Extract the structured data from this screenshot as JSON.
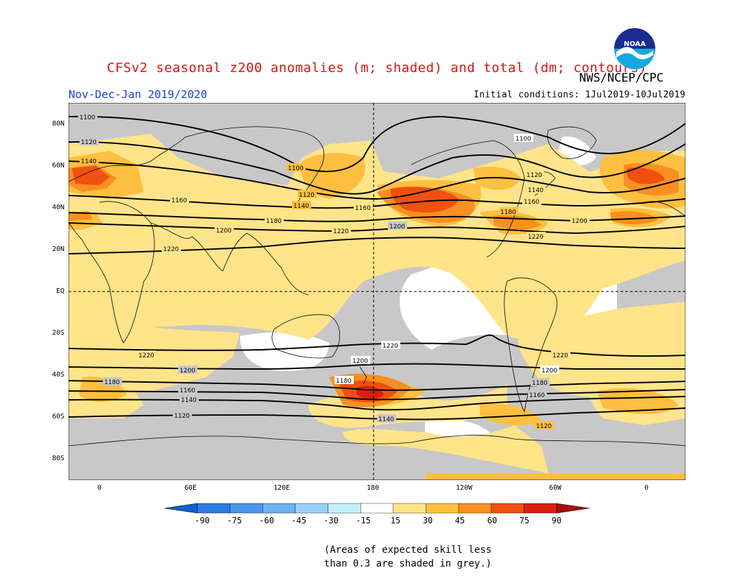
{
  "header": {
    "title": "CFSv2 seasonal z200 anomalies (m; shaded) and total (dm; contours)",
    "agency": "NWS/NCEP/CPC",
    "season": "Nov-Dec-Jan 2019/2020",
    "initial_conditions": "Initial conditions: 1Jul2019-10Jul2019",
    "logo_text": "NOAA"
  },
  "axes": {
    "lat_labels": [
      "80N",
      "60N",
      "40N",
      "20N",
      "EQ",
      "20S",
      "40S",
      "60S",
      "80S"
    ],
    "lon_labels": [
      "0",
      "60E",
      "120E",
      "180",
      "120W",
      "60W",
      "0"
    ]
  },
  "contour_labels": [
    "1100",
    "1120",
    "1140",
    "1160",
    "1180",
    "1200",
    "1220"
  ],
  "colorbar": {
    "ticks": [
      "-90",
      "-75",
      "-60",
      "-45",
      "-30",
      "-15",
      "15",
      "30",
      "45",
      "60",
      "75",
      "90"
    ],
    "colors": [
      "#1060d0",
      "#2a7ce0",
      "#4a96ea",
      "#6eb2f2",
      "#98d2f8",
      "#c4eefc",
      "#ffffff",
      "#ffe48a",
      "#ffbf40",
      "#f79020",
      "#f05010",
      "#d82010",
      "#a80e0e"
    ]
  },
  "colors": {
    "skill_grey": "#c8c8c8",
    "anom_15_30": "#ffe48a",
    "anom_30_45": "#ffbf40",
    "anom_45_60": "#f79020",
    "anom_60_75": "#f05010",
    "anom_75_90": "#d82010"
  },
  "note": {
    "line1": "(Areas of expected skill less",
    "line2": "than 0.3 are shaded in grey.)"
  }
}
